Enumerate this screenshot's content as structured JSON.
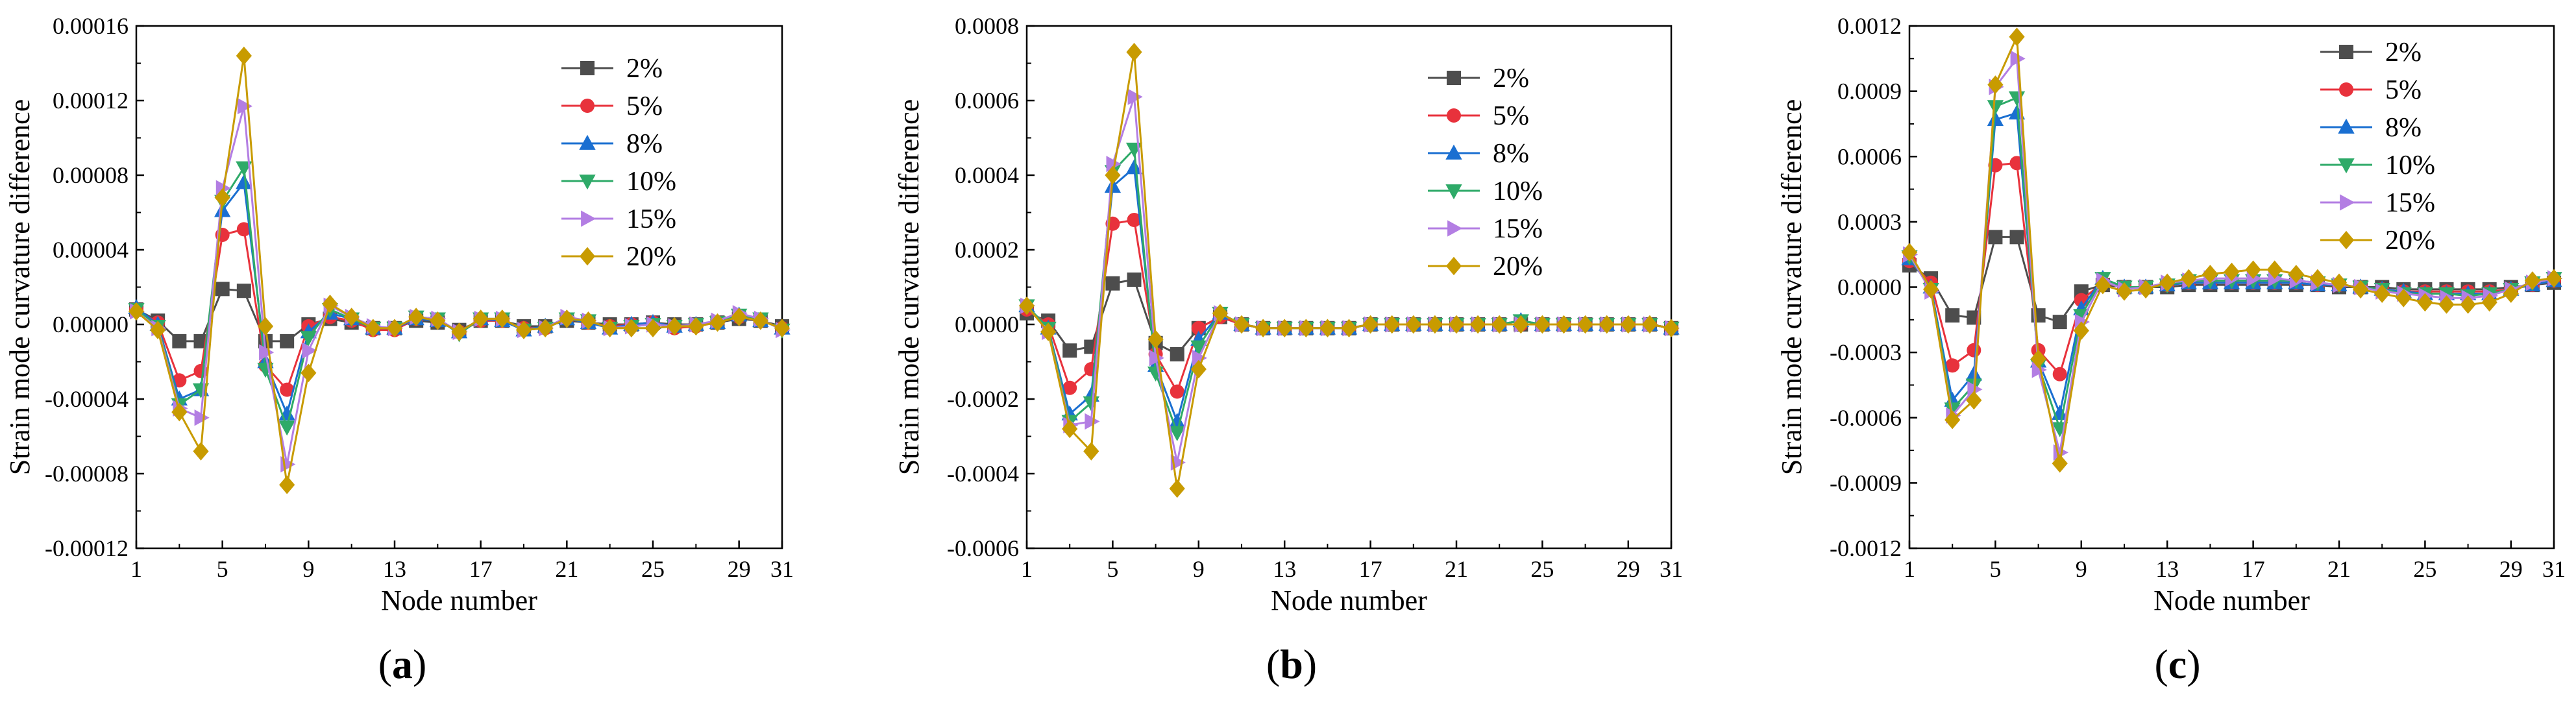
{
  "chart_data": [
    {
      "type": "line",
      "panel_label": "(a)",
      "panel_letter": "a",
      "xlabel": "Node number",
      "ylabel": "Strain mode curvature difference",
      "xlim": [
        1,
        31
      ],
      "ylim": [
        -0.00012,
        0.00016
      ],
      "xticks": [
        1,
        5,
        9,
        13,
        17,
        21,
        25,
        29,
        31
      ],
      "yticks": [
        -0.00012,
        -8e-05,
        -4e-05,
        0,
        4e-05,
        8e-05,
        0.00012,
        0.00016
      ],
      "ytick_labels": [
        "-0.00012",
        "-0.00008",
        "-0.00004",
        "0.00000",
        "0.00004",
        "0.00008",
        "0.00012",
        "0.00016"
      ],
      "legend_position": "top-right",
      "x": [
        1,
        2,
        3,
        4,
        5,
        6,
        7,
        8,
        9,
        10,
        11,
        12,
        13,
        14,
        15,
        16,
        17,
        18,
        19,
        20,
        21,
        22,
        23,
        24,
        25,
        26,
        27,
        28,
        29,
        30,
        31
      ],
      "series": [
        {
          "name": "2%",
          "color": "#4d4d4d",
          "marker": "square",
          "values": [
            8e-06,
            2e-06,
            -9e-06,
            -9e-06,
            1.9e-05,
            1.8e-05,
            -9e-06,
            -9e-06,
            0.0,
            3e-06,
            1e-06,
            -2e-06,
            -2e-06,
            2e-06,
            1e-06,
            -3e-06,
            2e-06,
            2e-06,
            -1e-06,
            -1e-06,
            2e-06,
            1e-06,
            0.0,
            0.0,
            1e-06,
            0.0,
            0.0,
            1e-06,
            3e-06,
            2e-06,
            -1e-06
          ]
        },
        {
          "name": "5%",
          "color": "#e8323c",
          "marker": "circle",
          "values": [
            8e-06,
            1e-06,
            -3e-05,
            -2.5e-05,
            4.8e-05,
            5.1e-05,
            -2.2e-05,
            -3.5e-05,
            -1e-06,
            4e-06,
            2e-06,
            -3e-06,
            -3e-06,
            3e-06,
            2e-06,
            -4e-06,
            2e-06,
            2e-06,
            -2e-06,
            -2e-06,
            3e-06,
            1e-06,
            -1e-06,
            0.0,
            1e-06,
            -2e-06,
            -1e-06,
            1e-06,
            4e-06,
            2e-06,
            -2e-06
          ]
        },
        {
          "name": "8%",
          "color": "#1a6fd1",
          "marker": "triangle-up",
          "values": [
            9e-06,
            0.0,
            -4e-05,
            -3.5e-05,
            6.1e-05,
            7.6e-05,
            -2e-05,
            -4.8e-05,
            -4e-06,
            6e-06,
            3e-06,
            -2e-06,
            -2e-06,
            3e-06,
            2e-06,
            -4e-06,
            3e-06,
            2e-06,
            -3e-06,
            -1e-06,
            3e-06,
            1e-06,
            -2e-06,
            0.0,
            1e-06,
            -1e-06,
            0.0,
            1e-06,
            5e-06,
            2e-06,
            -2e-06
          ]
        },
        {
          "name": "10%",
          "color": "#2eaa68",
          "marker": "triangle-down",
          "values": [
            8e-06,
            -1e-06,
            -4.3e-05,
            -3.5e-05,
            6.6e-05,
            8.4e-05,
            -2.4e-05,
            -5.5e-05,
            -7e-06,
            8e-06,
            3e-06,
            -2e-06,
            -2e-06,
            4e-06,
            3e-06,
            -5e-06,
            3e-06,
            3e-06,
            -3e-06,
            -2e-06,
            3e-06,
            2e-06,
            -2e-06,
            -1e-06,
            0.0,
            -1e-06,
            0.0,
            1e-06,
            5e-06,
            3e-06,
            -3e-06
          ]
        },
        {
          "name": "15%",
          "color": "#b37ee3",
          "marker": "triangle-right",
          "values": [
            7e-06,
            -2e-06,
            -4.5e-05,
            -5e-05,
            7.3e-05,
            0.000117,
            -1.5e-05,
            -7.5e-05,
            -1.4e-05,
            1e-05,
            4e-06,
            -1e-06,
            -2e-06,
            4e-06,
            3e-06,
            -4e-06,
            3e-06,
            3e-06,
            -3e-06,
            -2e-06,
            4e-06,
            2e-06,
            -2e-06,
            -1e-06,
            0.0,
            -1e-06,
            0.0,
            2e-06,
            6e-06,
            3e-06,
            -3e-06
          ]
        },
        {
          "name": "20%",
          "color": "#c89b00",
          "marker": "diamond",
          "values": [
            7e-06,
            -3e-06,
            -4.7e-05,
            -6.8e-05,
            6.8e-05,
            0.000144,
            -1e-06,
            -8.6e-05,
            -2.6e-05,
            1.1e-05,
            4e-06,
            -2e-06,
            -2e-06,
            4e-06,
            2e-06,
            -4e-06,
            3e-06,
            3e-06,
            -3e-06,
            -2e-06,
            3e-06,
            2e-06,
            -2e-06,
            -2e-06,
            -2e-06,
            -1e-06,
            -1e-06,
            1e-06,
            4e-06,
            2e-06,
            -2e-06
          ]
        }
      ]
    },
    {
      "type": "line",
      "panel_label": "(b)",
      "panel_letter": "b",
      "xlabel": "Node number",
      "ylabel": "Strain mode curvature difference",
      "xlim": [
        1,
        31
      ],
      "ylim": [
        -0.0006,
        0.0008
      ],
      "xticks": [
        1,
        5,
        9,
        13,
        17,
        21,
        25,
        29,
        31
      ],
      "yticks": [
        -0.0006,
        -0.0004,
        -0.0002,
        0,
        0.0002,
        0.0004,
        0.0006,
        0.0008
      ],
      "ytick_labels": [
        "-0.0006",
        "-0.0004",
        "-0.0002",
        "0.0000",
        "0.0002",
        "0.0004",
        "0.0006",
        "0.0008"
      ],
      "legend_position": "top-right",
      "x": [
        1,
        2,
        3,
        4,
        5,
        6,
        7,
        8,
        9,
        10,
        11,
        12,
        13,
        14,
        15,
        16,
        17,
        18,
        19,
        20,
        21,
        22,
        23,
        24,
        25,
        26,
        27,
        28,
        29,
        30,
        31
      ],
      "series": [
        {
          "name": "2%",
          "color": "#4d4d4d",
          "marker": "square",
          "values": [
            3e-05,
            1e-05,
            -7e-05,
            -6e-05,
            0.00011,
            0.00012,
            -5e-05,
            -8e-05,
            -1e-05,
            2e-05,
            0.0,
            -1e-05,
            -1e-05,
            -1e-05,
            -1e-05,
            -1e-05,
            0.0,
            0.0,
            0.0,
            0.0,
            0.0,
            0.0,
            0.0,
            0.0,
            0.0,
            0.0,
            0.0,
            0.0,
            0.0,
            0.0,
            -1e-05
          ]
        },
        {
          "name": "5%",
          "color": "#e8323c",
          "marker": "circle",
          "values": [
            4e-05,
            0.0,
            -0.00017,
            -0.00012,
            0.00027,
            0.00028,
            -8e-05,
            -0.00018,
            -1e-05,
            2e-05,
            0.0,
            -1e-05,
            -1e-05,
            -1e-05,
            -1e-05,
            -1e-05,
            0.0,
            0.0,
            0.0,
            0.0,
            0.0,
            0.0,
            0.0,
            0.0,
            0.0,
            0.0,
            0.0,
            0.0,
            0.0,
            0.0,
            -1e-05
          ]
        },
        {
          "name": "8%",
          "color": "#1a6fd1",
          "marker": "triangle-up",
          "values": [
            5e-05,
            -1e-05,
            -0.00024,
            -0.00019,
            0.00037,
            0.00042,
            -0.00011,
            -0.00026,
            -4e-05,
            3e-05,
            0.0,
            -1e-05,
            -1e-05,
            -1e-05,
            -1e-05,
            -1e-05,
            0.0,
            0.0,
            0.0,
            0.0,
            0.0,
            0.0,
            0.0,
            1e-05,
            0.0,
            0.0,
            0.0,
            0.0,
            0.0,
            0.0,
            -1e-05
          ]
        },
        {
          "name": "10%",
          "color": "#2eaa68",
          "marker": "triangle-down",
          "values": [
            5e-05,
            -1e-05,
            -0.00026,
            -0.00021,
            0.00041,
            0.00047,
            -0.00013,
            -0.00029,
            -6e-05,
            3e-05,
            0.0,
            -1e-05,
            -1e-05,
            -1e-05,
            -1e-05,
            -1e-05,
            0.0,
            0.0,
            0.0,
            0.0,
            0.0,
            0.0,
            0.0,
            1e-05,
            0.0,
            0.0,
            0.0,
            0.0,
            0.0,
            0.0,
            -1e-05
          ]
        },
        {
          "name": "15%",
          "color": "#b37ee3",
          "marker": "triangle-right",
          "values": [
            5e-05,
            -2e-05,
            -0.00027,
            -0.00026,
            0.00043,
            0.00061,
            -9e-05,
            -0.00037,
            -9e-05,
            3e-05,
            0.0,
            -1e-05,
            -1e-05,
            -1e-05,
            -1e-05,
            -1e-05,
            0.0,
            0.0,
            0.0,
            0.0,
            0.0,
            0.0,
            0.0,
            0.0,
            0.0,
            0.0,
            0.0,
            0.0,
            0.0,
            0.0,
            -1e-05
          ]
        },
        {
          "name": "20%",
          "color": "#c89b00",
          "marker": "diamond",
          "values": [
            5e-05,
            -2e-05,
            -0.00028,
            -0.00034,
            0.0004,
            0.00073,
            -4e-05,
            -0.00044,
            -0.00012,
            3e-05,
            0.0,
            -1e-05,
            -1e-05,
            -1e-05,
            -1e-05,
            -1e-05,
            0.0,
            0.0,
            0.0,
            0.0,
            0.0,
            0.0,
            0.0,
            0.0,
            0.0,
            0.0,
            0.0,
            0.0,
            0.0,
            0.0,
            -1e-05
          ]
        }
      ]
    },
    {
      "type": "line",
      "panel_label": "(c)",
      "panel_letter": "c",
      "xlabel": "Node number",
      "ylabel": "Strain mode curvature difference",
      "xlim": [
        1,
        31
      ],
      "ylim": [
        -0.0012,
        0.0012
      ],
      "xticks": [
        1,
        5,
        9,
        13,
        17,
        21,
        25,
        29,
        31
      ],
      "yticks": [
        -0.0012,
        -0.0009,
        -0.0006,
        -0.0003,
        0,
        0.0003,
        0.0006,
        0.0009,
        0.0012
      ],
      "ytick_labels": [
        "-0.0012",
        "-0.0009",
        "-0.0006",
        "-0.0003",
        "0.0000",
        "0.0003",
        "0.0006",
        "0.0009",
        "0.0012"
      ],
      "legend_position": "top-right",
      "x": [
        1,
        2,
        3,
        4,
        5,
        6,
        7,
        8,
        9,
        10,
        11,
        12,
        13,
        14,
        15,
        16,
        17,
        18,
        19,
        20,
        21,
        22,
        23,
        24,
        25,
        26,
        27,
        28,
        29,
        30,
        31
      ],
      "series": [
        {
          "name": "2%",
          "color": "#4d4d4d",
          "marker": "square",
          "values": [
            0.0001,
            4e-05,
            -0.00013,
            -0.00014,
            0.00023,
            0.00023,
            -0.00013,
            -0.00016,
            -2e-05,
            1e-05,
            0.0,
            0.0,
            0.0,
            1e-05,
            1e-05,
            1e-05,
            1e-05,
            1e-05,
            1e-05,
            1e-05,
            0.0,
            0.0,
            0.0,
            -1e-05,
            -1e-05,
            -1e-05,
            -1e-05,
            -1e-05,
            0.0,
            1e-05,
            2e-05
          ]
        },
        {
          "name": "5%",
          "color": "#e8323c",
          "marker": "circle",
          "values": [
            0.00012,
            2e-05,
            -0.00036,
            -0.00029,
            0.00056,
            0.00057,
            -0.00029,
            -0.0004,
            -6e-05,
            2e-05,
            0.0,
            0.0,
            1e-05,
            2e-05,
            2e-05,
            2e-05,
            2e-05,
            2e-05,
            2e-05,
            1e-05,
            1e-05,
            0.0,
            -1e-05,
            -2e-05,
            -2e-05,
            -2e-05,
            -2e-05,
            -2e-05,
            -1e-05,
            1e-05,
            3e-05
          ]
        },
        {
          "name": "8%",
          "color": "#1a6fd1",
          "marker": "triangle-up",
          "values": [
            0.00013,
            0.0,
            -0.00052,
            -0.0004,
            0.00077,
            0.0008,
            -0.00034,
            -0.00058,
            -0.0001,
            4e-05,
            0.0,
            0.0,
            1e-05,
            2e-05,
            2e-05,
            2e-05,
            2e-05,
            2e-05,
            2e-05,
            1e-05,
            1e-05,
            0.0,
            -1e-05,
            -2e-05,
            -3e-05,
            -3e-05,
            -3e-05,
            -3e-05,
            -1e-05,
            1e-05,
            3e-05
          ]
        },
        {
          "name": "10%",
          "color": "#2eaa68",
          "marker": "triangle-down",
          "values": [
            0.00014,
            -1e-05,
            -0.00056,
            -0.00045,
            0.00083,
            0.00087,
            -0.00036,
            -0.00065,
            -0.00013,
            4e-05,
            0.0,
            0.0,
            1e-05,
            3e-05,
            3e-05,
            3e-05,
            3e-05,
            3e-05,
            3e-05,
            2e-05,
            1e-05,
            0.0,
            -1e-05,
            -3e-05,
            -3e-05,
            -3e-05,
            -4e-05,
            -3e-05,
            -1e-05,
            2e-05,
            4e-05
          ]
        },
        {
          "name": "15%",
          "color": "#b37ee3",
          "marker": "triangle-right",
          "values": [
            0.00015,
            -2e-05,
            -0.00059,
            -0.00047,
            0.00092,
            0.00105,
            -0.00038,
            -0.00076,
            -0.00016,
            3e-05,
            -1e-05,
            0.0,
            2e-05,
            3e-05,
            4e-05,
            4e-05,
            4e-05,
            4e-05,
            3e-05,
            2e-05,
            1e-05,
            0.0,
            -2e-05,
            -3e-05,
            -4e-05,
            -5e-05,
            -5e-05,
            -4e-05,
            -1e-05,
            2e-05,
            4e-05
          ]
        },
        {
          "name": "20%",
          "color": "#c89b00",
          "marker": "diamond",
          "values": [
            0.00016,
            -1e-05,
            -0.00061,
            -0.00052,
            0.00093,
            0.00115,
            -0.00033,
            -0.00081,
            -0.0002,
            1e-05,
            -2e-05,
            -1e-05,
            2e-05,
            4e-05,
            6e-05,
            7e-05,
            8e-05,
            8e-05,
            6e-05,
            4e-05,
            2e-05,
            -1e-05,
            -3e-05,
            -5e-05,
            -7e-05,
            -8e-05,
            -8e-05,
            -7e-05,
            -3e-05,
            3e-05,
            4e-05
          ]
        }
      ]
    }
  ]
}
